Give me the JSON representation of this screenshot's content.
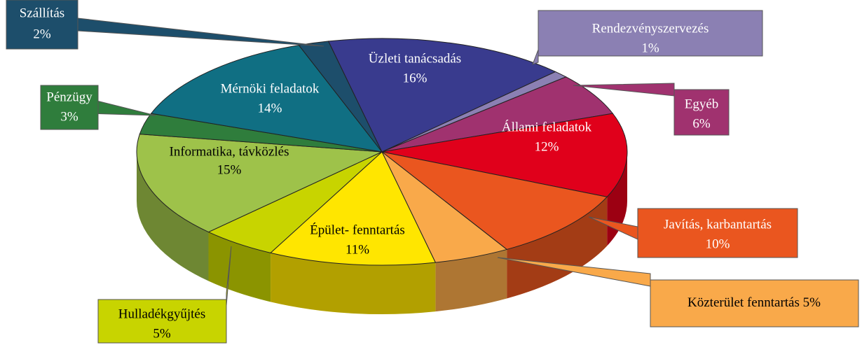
{
  "chart_data": {
    "type": "pie",
    "categories": [
      "Rendezvényszervezés",
      "Egyéb",
      "Állami feladatok",
      "Javítás, karbantartás",
      "Közterület fenntartás",
      "Épület- fenntartás",
      "Hulladékgyűjtés",
      "Informatika, távközlés",
      "Pénzügy",
      "Mérnöki feladatok",
      "Szállítás",
      "Üzleti tanácsadás"
    ],
    "values": [
      1,
      6,
      12,
      10,
      5,
      11,
      5,
      15,
      3,
      14,
      2,
      16
    ],
    "value_labels": [
      "1%",
      "6%",
      "12%",
      "10%",
      "5%",
      "11%",
      "5%",
      "15%",
      "3%",
      "14%",
      "2%",
      "16%"
    ],
    "colors": [
      "#8b80b3",
      "#a0326f",
      "#e0001b",
      "#ea561f",
      "#f9a94a",
      "#ffe600",
      "#c8d400",
      "#9ec24a",
      "#2f7d3c",
      "#106f83",
      "#1d4e6b",
      "#393b8e"
    ]
  }
}
